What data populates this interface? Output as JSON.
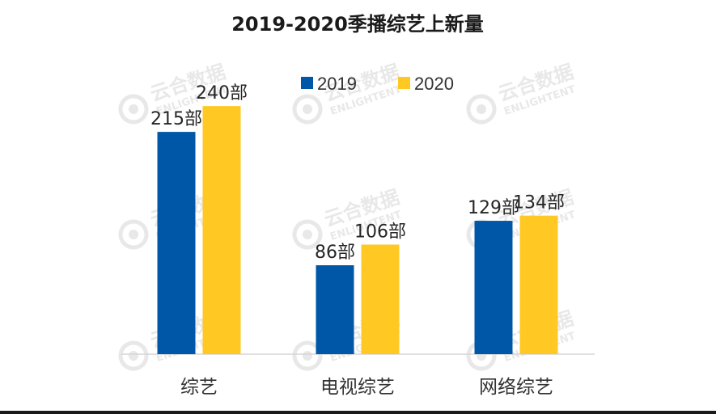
{
  "chart_data": {
    "type": "bar",
    "title": "2019-2020季播综艺上新量",
    "categories": [
      "综艺",
      "电视综艺",
      "网络综艺"
    ],
    "series": [
      {
        "name": "2019",
        "values": [
          215,
          86,
          129
        ],
        "labels": [
          "215部",
          "86部",
          "129部"
        ],
        "color": "#0057A8"
      },
      {
        "name": "2020",
        "values": [
          240,
          106,
          134
        ],
        "labels": [
          "240部",
          "106部",
          "134部"
        ],
        "color": "#FFC823"
      }
    ],
    "xlabel": "",
    "ylabel": "",
    "ylim": [
      0,
      280
    ],
    "grid": false,
    "legend": "top-center"
  },
  "watermark": {
    "brand": "云合数据",
    "brand_en": "ENLIGHTENT"
  }
}
